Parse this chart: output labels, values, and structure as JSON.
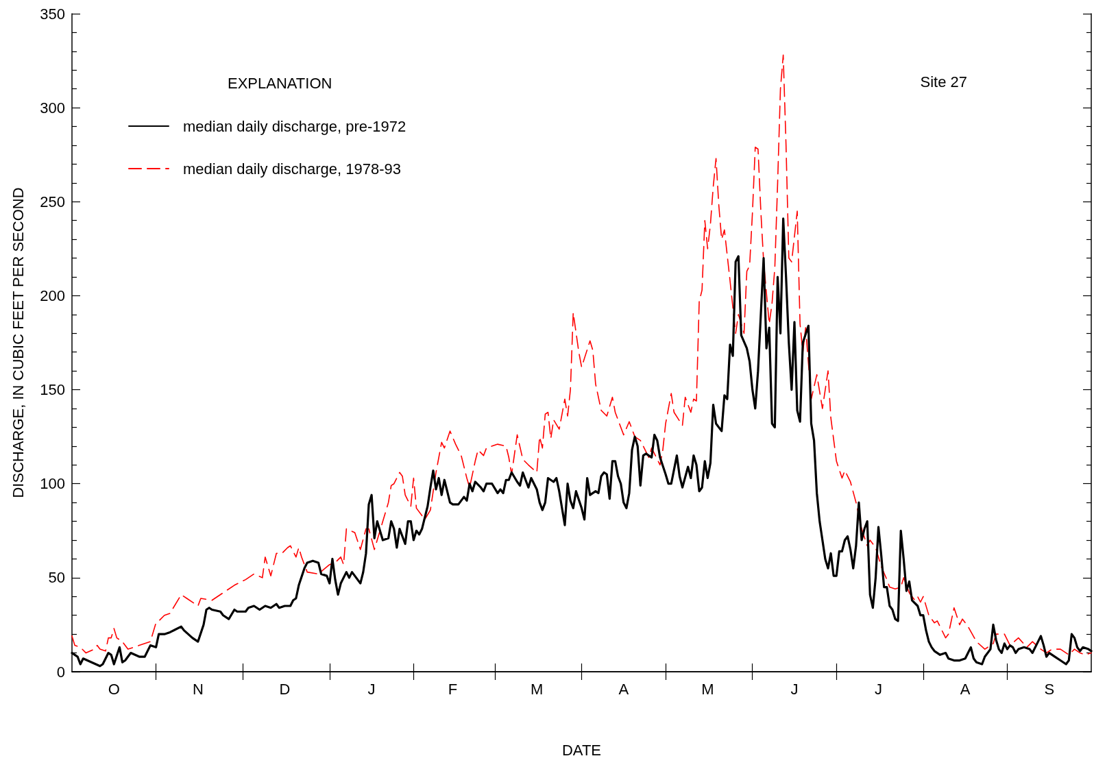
{
  "chart_data": {
    "type": "line",
    "xlabel": "DATE",
    "ylabel": "DISCHARGE, IN CUBIC FEET PER SECOND",
    "legend_title": "EXPLANATION",
    "annotations": [
      "Site 27"
    ],
    "categories": [
      null,
      null,
      null,
      null,
      null,
      null,
      null,
      null,
      null,
      null,
      null,
      null,
      null,
      null,
      null,
      "O",
      null,
      null,
      null,
      null,
      null,
      null,
      null,
      null,
      null,
      null,
      null,
      null,
      null,
      null,
      null,
      null,
      null,
      null,
      null,
      null,
      null,
      null,
      null,
      null,
      null,
      null,
      null,
      null,
      null,
      "N",
      null,
      null,
      null,
      null,
      null,
      null,
      null,
      null,
      null,
      null,
      null,
      null,
      null,
      null,
      null,
      null,
      null,
      null,
      null,
      null,
      null,
      null,
      null,
      null,
      null,
      null,
      null,
      null,
      null,
      null,
      "D",
      null,
      null,
      null,
      null,
      null,
      null,
      null,
      null,
      null,
      null,
      null,
      null,
      null,
      null,
      null,
      null,
      null,
      null,
      null,
      null,
      null,
      null,
      null,
      null,
      null,
      null,
      null,
      null,
      null,
      null,
      "J",
      null,
      null,
      null,
      null,
      null,
      null,
      null,
      null,
      null,
      null,
      null,
      null,
      null,
      null,
      null,
      null,
      null,
      null,
      null,
      null,
      null,
      null,
      null,
      null,
      null,
      null,
      null,
      null,
      "F",
      null,
      null,
      null,
      null,
      null,
      null,
      null,
      null,
      null,
      null,
      null,
      null,
      null,
      null,
      null,
      null,
      null,
      null,
      null,
      null,
      null,
      null,
      null,
      null,
      null,
      null,
      null,
      null,
      null,
      "M",
      null,
      null,
      null,
      null,
      null,
      null,
      null,
      null,
      null,
      null,
      null,
      null,
      null,
      null,
      null,
      null,
      null,
      null,
      null,
      null,
      null,
      null,
      null,
      null,
      null,
      null,
      null,
      null,
      null,
      null,
      "A",
      null,
      null,
      null,
      null,
      null,
      null,
      null,
      null,
      null,
      null,
      null,
      null,
      null,
      null,
      null,
      null,
      null,
      null,
      null,
      null,
      null,
      null,
      null,
      null,
      null,
      null,
      null,
      null,
      null,
      "M",
      null,
      null,
      null,
      null,
      null,
      null,
      null,
      null,
      null,
      null,
      null,
      null,
      null,
      null,
      null,
      null,
      null,
      null,
      null,
      null,
      null,
      null,
      null,
      null,
      null,
      null,
      null,
      null,
      null,
      null,
      "J",
      null,
      null,
      null,
      null,
      null,
      null,
      null,
      null,
      null,
      null,
      null,
      null,
      null,
      null,
      null,
      null,
      null,
      null,
      null,
      null,
      null,
      null,
      null,
      null,
      null,
      null,
      null,
      null,
      null,
      "J",
      null,
      null,
      null,
      null,
      null,
      null,
      null,
      null,
      null,
      null,
      null,
      null,
      null,
      null,
      null,
      null,
      null,
      null,
      null,
      null,
      null,
      null,
      null,
      null,
      null,
      null,
      null,
      null,
      null,
      null,
      "A",
      null,
      null,
      null,
      null,
      null,
      null,
      null,
      null,
      null,
      null,
      null,
      null,
      null,
      null,
      null,
      null,
      null,
      null,
      null,
      null,
      null,
      null,
      null,
      null,
      null,
      null,
      null,
      null,
      null,
      "S",
      null,
      null,
      null,
      null,
      null,
      null,
      null,
      null,
      null,
      null,
      null,
      null,
      null,
      null,
      null
    ],
    "ylim": [
      0,
      350
    ],
    "yticks": [
      0,
      50,
      100,
      150,
      200,
      250,
      300,
      350
    ],
    "grid": false,
    "legend": "top left",
    "marker": "none",
    "series": [
      {
        "name": "median daily discharge, pre-1972",
        "color": "#000000",
        "line_style": "solid",
        "values": [
          10,
          null,
          8,
          4,
          7,
          null,
          null,
          5,
          null,
          null,
          3,
          4,
          null,
          10,
          9,
          4,
          null,
          13,
          5,
          6,
          null,
          10,
          null,
          null,
          8,
          null,
          8,
          null,
          14,
          null,
          13,
          20,
          null,
          20,
          null,
          21,
          null,
          null,
          null,
          24,
          22,
          null,
          null,
          18,
          null,
          16,
          null,
          25,
          33,
          34,
          33,
          null,
          null,
          32,
          30,
          null,
          28,
          null,
          33,
          32,
          null,
          null,
          32,
          34,
          null,
          35,
          null,
          33,
          null,
          35,
          null,
          34,
          null,
          36,
          34,
          null,
          35,
          null,
          35,
          38,
          39,
          46,
          null,
          55,
          58,
          null,
          59,
          null,
          58,
          52,
          null,
          51,
          47,
          60,
          49,
          41,
          47,
          null,
          53,
          50,
          53,
          51,
          null,
          47,
          53,
          63,
          89,
          94,
          71,
          80,
          null,
          70,
          null,
          71,
          80,
          76,
          66,
          76,
          null,
          68,
          80,
          80,
          70,
          75,
          73,
          76,
          null,
          88,
          98,
          107,
          97,
          103,
          94,
          102,
          null,
          90,
          89,
          null,
          89,
          null,
          93,
          91,
          100,
          96,
          101,
          null,
          98,
          96,
          100,
          null,
          100,
          null,
          95,
          97,
          95,
          102,
          102,
          106,
          null,
          101,
          99,
          106,
          null,
          98,
          103,
          null,
          97,
          90,
          86,
          90,
          103,
          null,
          101,
          103,
          96,
          null,
          78,
          100,
          91,
          87,
          96,
          null,
          87,
          81,
          103,
          94,
          null,
          96,
          95,
          104,
          106,
          105,
          92,
          112,
          112,
          104,
          100,
          90,
          87,
          95,
          118,
          125,
          120,
          99,
          115,
          116,
          null,
          114,
          126,
          123,
          114,
          null,
          105,
          100,
          100,
          null,
          115,
          104,
          98,
          null,
          109,
          103,
          115,
          110,
          96,
          98,
          112,
          103,
          111,
          142,
          132,
          null,
          128,
          147,
          145,
          174,
          168,
          218,
          221,
          179,
          null,
          172,
          165,
          150,
          140,
          160,
          190,
          220,
          172,
          183,
          132,
          130,
          210,
          180,
          241,
          210,
          175,
          150,
          186,
          139,
          133,
          175,
          null,
          184,
          132,
          123,
          95,
          80,
          70,
          60,
          55,
          63,
          51,
          51,
          64,
          64,
          70,
          72,
          65,
          55,
          67,
          90,
          70,
          76,
          80,
          41,
          34,
          50,
          77,
          62,
          45,
          45,
          35,
          33,
          28,
          27,
          75,
          60,
          43,
          48,
          38,
          null,
          35,
          30,
          30,
          22,
          16,
          13,
          11,
          null,
          9,
          null,
          10,
          7,
          null,
          6,
          null,
          6,
          null,
          7,
          10,
          13,
          7,
          5,
          null,
          4,
          8,
          null,
          12,
          25,
          17,
          12,
          10,
          15,
          12,
          14,
          13,
          10,
          12,
          null,
          13,
          null,
          12,
          10,
          null,
          16,
          19,
          14,
          8,
          10,
          null,
          8,
          null,
          6,
          null,
          4,
          6,
          20,
          18,
          13,
          11,
          13,
          null,
          12,
          11
        ]
      },
      {
        "name": "median daily discharge, 1978-93",
        "color": "#ff0000",
        "line_style": "dashed",
        "values": [
          19,
          14,
          null,
          13,
          null,
          10,
          null,
          null,
          12,
          14,
          12,
          null,
          11,
          18,
          18,
          23,
          18,
          null,
          16,
          null,
          12,
          null,
          null,
          null,
          14,
          null,
          null,
          null,
          16,
          null,
          26,
          27,
          null,
          30,
          null,
          31,
          null,
          null,
          null,
          41,
          null,
          39,
          null,
          null,
          null,
          35,
          39,
          null,
          null,
          null,
          38,
          null,
          null,
          null,
          42,
          null,
          null,
          null,
          46,
          null,
          null,
          null,
          49,
          null,
          null,
          52,
          null,
          null,
          50,
          61,
          null,
          51,
          null,
          63,
          null,
          63,
          null,
          66,
          67,
          null,
          61,
          66,
          61,
          null,
          53,
          null,
          null,
          null,
          52,
          null,
          null,
          null,
          57,
          null,
          58,
          null,
          61,
          57,
          76,
          null,
          null,
          74,
          null,
          65,
          null,
          76,
          76,
          null,
          65,
          70,
          null,
          80,
          null,
          90,
          99,
          100,
          null,
          106,
          104,
          94,
          null,
          88,
          103,
          87,
          null,
          null,
          81,
          null,
          86,
          null,
          106,
          null,
          122,
          119,
          null,
          128,
          null,
          121,
          null,
          115,
          null,
          103,
          98,
          null,
          112,
          118,
          null,
          115,
          119,
          null,
          null,
          null,
          121,
          null,
          null,
          120,
          114,
          105,
          null,
          126,
          null,
          113,
          null,
          110,
          null,
          null,
          106,
          125,
          119,
          137,
          138,
          124,
          134,
          null,
          129,
          null,
          145,
          136,
          150,
          191,
          null,
          170,
          162,
          null,
          null,
          176,
          171,
          153,
          null,
          139,
          null,
          136,
          null,
          146,
          138,
          null,
          null,
          126,
          null,
          133,
          null,
          125,
          null,
          123,
          null,
          null,
          114,
          119,
          null,
          null,
          110,
          118,
          132,
          null,
          148,
          138,
          null,
          null,
          131,
          146,
          null,
          138,
          145,
          144,
          197,
          203,
          240,
          225,
          238,
          258,
          273,
          248,
          230,
          235,
          null,
          208,
          null,
          180,
          190,
          null,
          180,
          213,
          216,
          244,
          279,
          278,
          245,
          218,
          null,
          185,
          196,
          215,
          260,
          310,
          328,
          280,
          220,
          218,
          null,
          245,
          185,
          170,
          183,
          null,
          145,
          null,
          158,
          null,
          140,
          null,
          160,
          135,
          null,
          112,
          null,
          103,
          107,
          null,
          101,
          null,
          90,
          null,
          76,
          null,
          67,
          70,
          null,
          66,
          null,
          56,
          null,
          49,
          45,
          null,
          44,
          null,
          45,
          50,
          null,
          42,
          null,
          38,
          40,
          37,
          40,
          null,
          30,
          null,
          26,
          27,
          null,
          null,
          18,
          20,
          null,
          34,
          null,
          25,
          28,
          null,
          24,
          null,
          null,
          16,
          null,
          null,
          12,
          null,
          null,
          15,
          20,
          null,
          null,
          20,
          null,
          14,
          null,
          null,
          18,
          null,
          null,
          13,
          null,
          16,
          null,
          null,
          12,
          null,
          10,
          null,
          12,
          null,
          null,
          12,
          null,
          null,
          9,
          null,
          12,
          null,
          10,
          null,
          9,
          null,
          10
        ]
      }
    ]
  }
}
